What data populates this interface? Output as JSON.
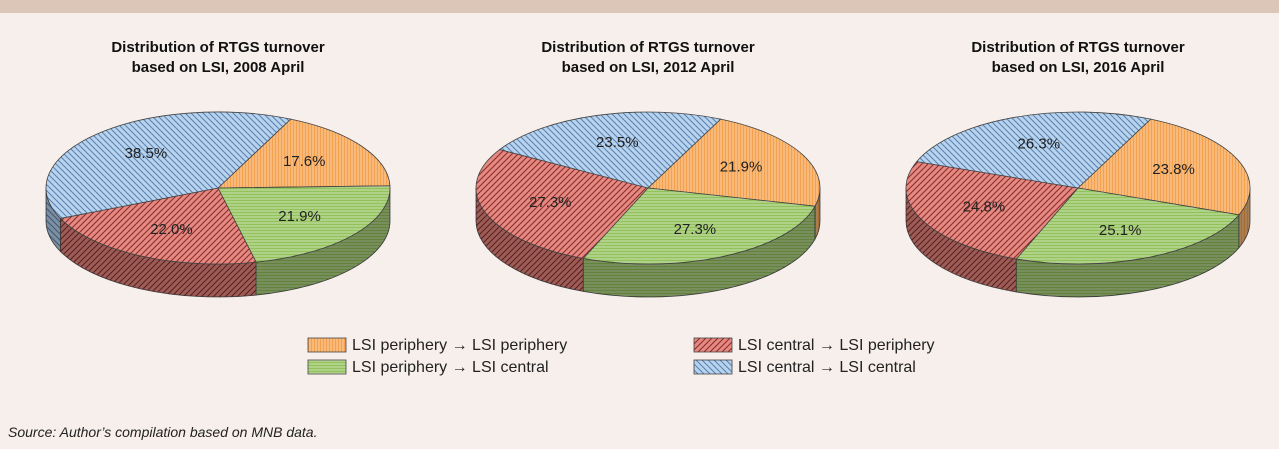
{
  "chart_data": [
    {
      "type": "pie",
      "title": "Distribution of RTGS turnover based on LSI, 2008 April",
      "categories": [
        "LSI periphery → LSI periphery",
        "LSI periphery → LSI central",
        "LSI central → LSI periphery",
        "LSI central → LSI central"
      ],
      "values": [
        17.6,
        21.9,
        22.0,
        38.5
      ],
      "value_labels": [
        "17.6%",
        "21.9%",
        "22.0%",
        "38.5%"
      ],
      "colors": [
        "#f5a04a",
        "#92c25a",
        "#e48a82",
        "#b8d3ee"
      ]
    },
    {
      "type": "pie",
      "title": "Distribution of RTGS turnover based on LSI, 2012 April",
      "categories": [
        "LSI periphery → LSI periphery",
        "LSI periphery → LSI central",
        "LSI central → LSI periphery",
        "LSI central → LSI central"
      ],
      "values": [
        21.9,
        27.3,
        27.3,
        23.5
      ],
      "value_labels": [
        "21.9%",
        "27.3%",
        "27.3%",
        "23.5%"
      ],
      "colors": [
        "#f5a04a",
        "#92c25a",
        "#e48a82",
        "#b8d3ee"
      ]
    },
    {
      "type": "pie",
      "title": "Distribution of RTGS turnover based on LSI, 2016 April",
      "categories": [
        "LSI periphery → LSI periphery",
        "LSI periphery → LSI central",
        "LSI central → LSI periphery",
        "LSI central → LSI central"
      ],
      "values": [
        23.8,
        25.1,
        24.8,
        26.3
      ],
      "value_labels": [
        "23.8%",
        "25.1%",
        "24.8%",
        "26.3%"
      ],
      "colors": [
        "#f5a04a",
        "#92c25a",
        "#e48a82",
        "#b8d3ee"
      ]
    }
  ],
  "source": "Source: Author’s compilation based on MNB data."
}
